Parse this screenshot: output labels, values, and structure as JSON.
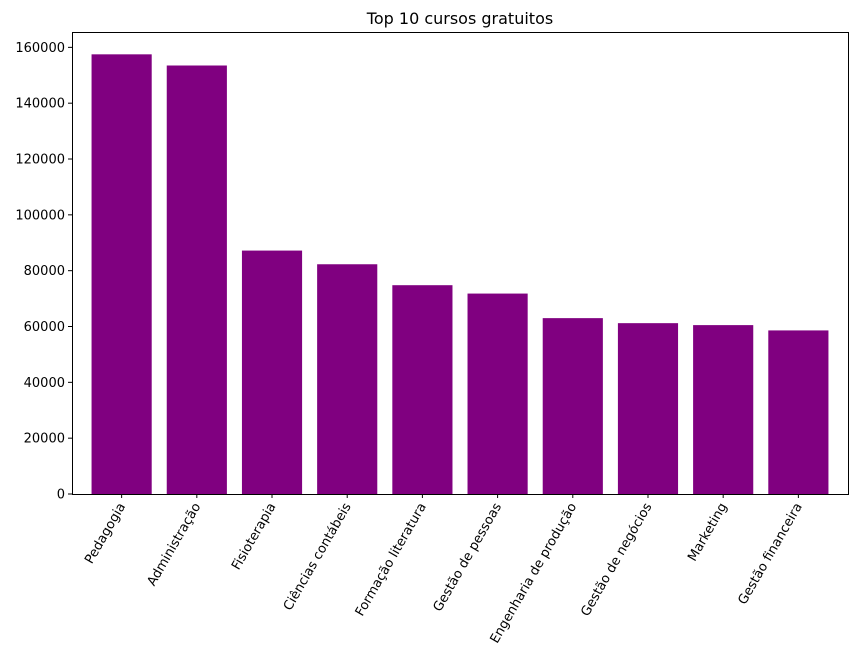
{
  "chart_data": {
    "type": "bar",
    "title": "Top 10 cursos gratuitos",
    "xlabel": "",
    "ylabel": "",
    "categories": [
      "Pedagogia",
      "Administração",
      "Fisioterapia",
      "Ciências contábeis",
      "Formação literatura",
      "Gestão de pessoas",
      "Engenharia de produção",
      "Gestão de negócios",
      "Marketing",
      "Gestão financeira"
    ],
    "values": [
      157500,
      153500,
      87200,
      82300,
      74800,
      71800,
      63000,
      61200,
      60500,
      58600
    ],
    "ylim": [
      0,
      165500
    ],
    "yticks": [
      0,
      20000,
      40000,
      60000,
      80000,
      100000,
      120000,
      140000,
      160000
    ],
    "bar_color": "#800080",
    "grid": false,
    "legend": "none"
  }
}
